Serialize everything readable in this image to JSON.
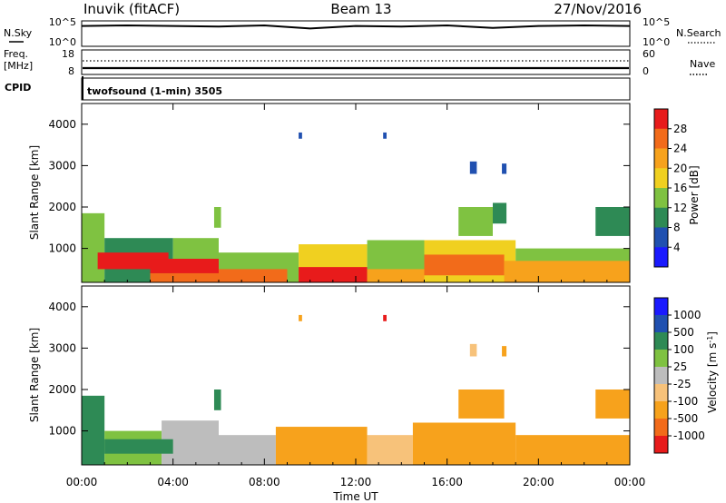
{
  "header": {
    "station": "Inuvik (fitACF)",
    "beam": "Beam 13",
    "date": "27/Nov/2016"
  },
  "noise_panel": {
    "left_label": "N.Sky",
    "right_label": "N.Search",
    "left_ticks": [
      "10^5",
      "10^0"
    ],
    "right_ticks": [
      "10^5",
      "10^0"
    ]
  },
  "freq_panel": {
    "left_label_line1": "Freq.",
    "left_label_line2": "[MHz]",
    "right_label": "Nave",
    "left_ticks": [
      "18",
      "8"
    ],
    "right_ticks": [
      "60",
      "0"
    ]
  },
  "cpid": {
    "label": "CPID",
    "value": "twofsound (1-min) 3505"
  },
  "axes": {
    "xlabel": "Time UT",
    "xticks": [
      "00:00",
      "04:00",
      "08:00",
      "12:00",
      "16:00",
      "20:00",
      "00:00"
    ],
    "ylabel": "Slant Range [km]",
    "yticks": [
      "4000",
      "3000",
      "2000",
      "1000"
    ]
  },
  "chart_data": [
    {
      "type": "heatmap",
      "title": "",
      "xlabel": "",
      "ylabel": "Slant Range [km]",
      "xlim_hours": [
        0,
        24
      ],
      "ylim_km": [
        180,
        4500
      ],
      "colorbar": {
        "label": "Power [dB]",
        "ticks": [
          "28",
          "24",
          "20",
          "16",
          "12",
          "8",
          "4"
        ],
        "levels": [
          0,
          4,
          8,
          12,
          16,
          20,
          24,
          28,
          32
        ],
        "colors": [
          "#1a1aff",
          "#2050b0",
          "#2e8a55",
          "#7fc241",
          "#f0d020",
          "#f7a21c",
          "#f26b1a",
          "#e81b1b"
        ]
      },
      "regions": [
        {
          "t0": 0.0,
          "t1": 1.0,
          "r0": 180,
          "r1": 1850,
          "value": 14
        },
        {
          "t0": 1.0,
          "t1": 4.0,
          "r0": 180,
          "r1": 1250,
          "value": 10
        },
        {
          "t0": 4.0,
          "t1": 6.0,
          "r0": 180,
          "r1": 1250,
          "value": 14
        },
        {
          "t0": 6.0,
          "t1": 9.5,
          "r0": 180,
          "r1": 900,
          "value": 12
        },
        {
          "t0": 9.5,
          "t1": 12.5,
          "r0": 180,
          "r1": 1100,
          "value": 16
        },
        {
          "t0": 12.5,
          "t1": 15.0,
          "r0": 180,
          "r1": 1200,
          "value": 14
        },
        {
          "t0": 15.0,
          "t1": 19.0,
          "r0": 180,
          "r1": 1200,
          "value": 18
        },
        {
          "t0": 19.0,
          "t1": 24.0,
          "r0": 180,
          "r1": 1000,
          "value": 12
        },
        {
          "t0": 0.7,
          "t1": 3.8,
          "r0": 500,
          "r1": 900,
          "value": 28
        },
        {
          "t0": 3.0,
          "t1": 6.0,
          "r0": 400,
          "r1": 750,
          "value": 29
        },
        {
          "t0": 3.0,
          "t1": 6.0,
          "r0": 180,
          "r1": 400,
          "value": 24
        },
        {
          "t0": 6.0,
          "t1": 9.0,
          "r0": 180,
          "r1": 500,
          "value": 26
        },
        {
          "t0": 9.5,
          "t1": 12.5,
          "r0": 180,
          "r1": 550,
          "value": 30
        },
        {
          "t0": 12.5,
          "t1": 15.0,
          "r0": 180,
          "r1": 500,
          "value": 22
        },
        {
          "t0": 15.0,
          "t1": 18.5,
          "r0": 350,
          "r1": 850,
          "value": 26
        },
        {
          "t0": 18.5,
          "t1": 24.0,
          "r0": 180,
          "r1": 700,
          "value": 20
        },
        {
          "t0": 16.5,
          "t1": 18.0,
          "r0": 1300,
          "r1": 2000,
          "value": 13
        },
        {
          "t0": 18.0,
          "t1": 18.6,
          "r0": 1600,
          "r1": 2100,
          "value": 8
        },
        {
          "t0": 22.5,
          "t1": 24.0,
          "r0": 1300,
          "r1": 2000,
          "value": 9
        },
        {
          "t0": 5.8,
          "t1": 6.1,
          "r0": 1500,
          "r1": 2000,
          "value": 14
        },
        {
          "t0": 9.5,
          "t1": 9.65,
          "r0": 3650,
          "r1": 3800,
          "value": 4
        },
        {
          "t0": 13.2,
          "t1": 13.35,
          "r0": 3650,
          "r1": 3800,
          "value": 4
        },
        {
          "t0": 17.0,
          "t1": 17.3,
          "r0": 2800,
          "r1": 3100,
          "value": 6
        },
        {
          "t0": 18.4,
          "t1": 18.6,
          "r0": 2800,
          "r1": 3050,
          "value": 6
        }
      ]
    },
    {
      "type": "heatmap",
      "title": "",
      "xlabel": "Time UT",
      "ylabel": "Slant Range [km]",
      "xlim_hours": [
        0,
        24
      ],
      "ylim_km": [
        180,
        4500
      ],
      "colorbar": {
        "label": "Velocity [m s^-1]",
        "ticks": [
          "1000",
          "500",
          "100",
          "25",
          "-25",
          "-100",
          "-500",
          "-1000"
        ],
        "levels": [
          -1500,
          -1000,
          -500,
          -100,
          -25,
          25,
          100,
          500,
          1000,
          1500
        ],
        "colors": [
          "#e81b1b",
          "#f26b1a",
          "#f7a21c",
          "#f7c27a",
          "#bdbdbd",
          "#7fc241",
          "#2e8a55",
          "#2050b0",
          "#1a1aff"
        ]
      },
      "regions": [
        {
          "t0": 0.0,
          "t1": 1.0,
          "r0": 180,
          "r1": 1850,
          "value": 150
        },
        {
          "t0": 1.0,
          "t1": 3.5,
          "r0": 180,
          "r1": 1000,
          "value": 80
        },
        {
          "t0": 3.5,
          "t1": 6.0,
          "r0": 180,
          "r1": 1250,
          "value": 0
        },
        {
          "t0": 6.0,
          "t1": 8.5,
          "r0": 180,
          "r1": 900,
          "value": 0
        },
        {
          "t0": 8.5,
          "t1": 12.5,
          "r0": 180,
          "r1": 1100,
          "value": -150
        },
        {
          "t0": 12.5,
          "t1": 14.5,
          "r0": 180,
          "r1": 900,
          "value": -60
        },
        {
          "t0": 14.5,
          "t1": 19.0,
          "r0": 180,
          "r1": 1200,
          "value": -200
        },
        {
          "t0": 19.0,
          "t1": 24.0,
          "r0": 180,
          "r1": 900,
          "value": -150
        },
        {
          "t0": 1.0,
          "t1": 4.0,
          "r0": 450,
          "r1": 800,
          "value": 150
        },
        {
          "t0": 16.5,
          "t1": 18.5,
          "r0": 1300,
          "r1": 2000,
          "value": -300
        },
        {
          "t0": 22.5,
          "t1": 24.0,
          "r0": 1300,
          "r1": 2000,
          "value": -120
        },
        {
          "t0": 5.8,
          "t1": 6.1,
          "r0": 1500,
          "r1": 2000,
          "value": 200
        },
        {
          "t0": 9.5,
          "t1": 9.65,
          "r0": 3650,
          "r1": 3800,
          "value": -300
        },
        {
          "t0": 13.2,
          "t1": 13.35,
          "r0": 3650,
          "r1": 3800,
          "value": -1200
        },
        {
          "t0": 17.0,
          "t1": 17.3,
          "r0": 2800,
          "r1": 3100,
          "value": -60
        },
        {
          "t0": 18.4,
          "t1": 18.6,
          "r0": 2800,
          "r1": 3050,
          "value": -150
        }
      ]
    },
    {
      "type": "line",
      "title": "",
      "series": [
        {
          "name": "N.Sky",
          "note": "",
          "x_hours": [
            0,
            2,
            4,
            6,
            8,
            10,
            12,
            14,
            16,
            18,
            20,
            22,
            24
          ],
          "values": [
            0.8,
            0.82,
            0.8,
            0.78,
            0.82,
            0.7,
            0.8,
            0.78,
            0.82,
            0.72,
            0.8,
            0.82,
            0.8
          ]
        }
      ],
      "ylim": [
        0,
        1
      ]
    }
  ]
}
